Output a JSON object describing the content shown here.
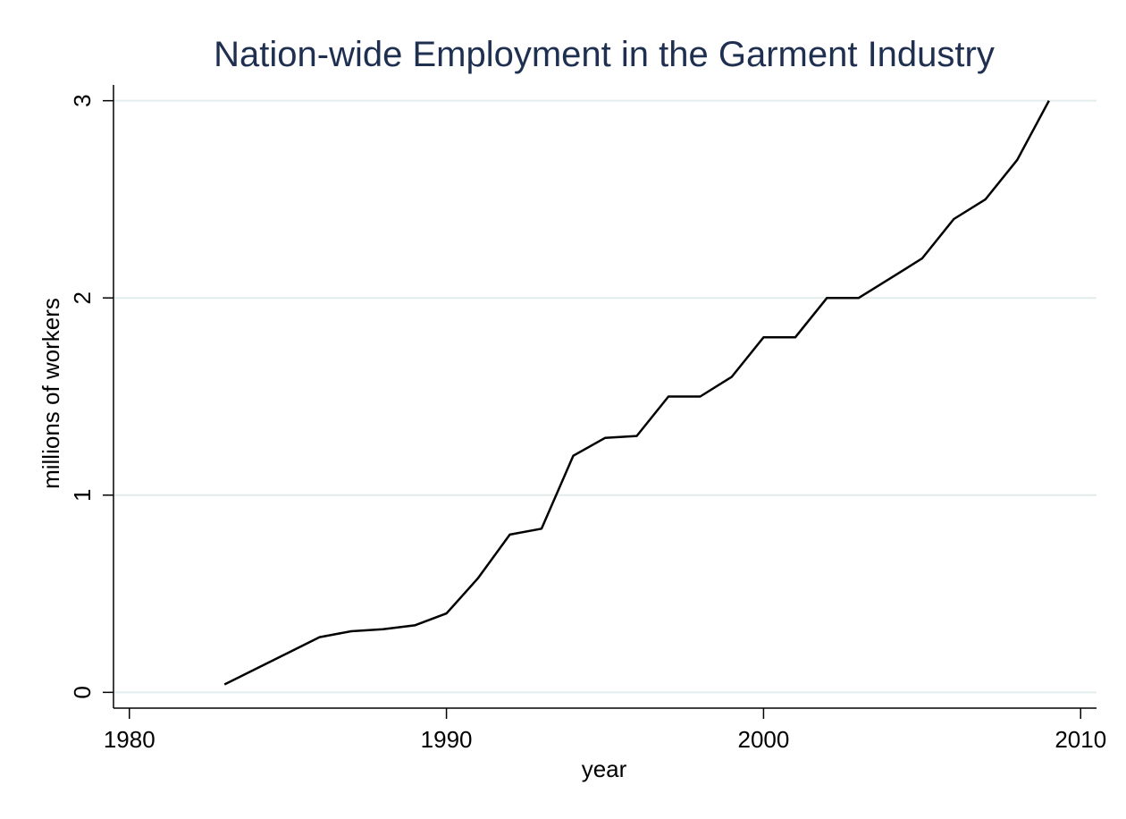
{
  "chart_data": {
    "type": "line",
    "title": "Nation-wide Employment in the Garment Industry",
    "xlabel": "year",
    "ylabel": "millions of workers",
    "xlim": [
      1979.5,
      2010.5
    ],
    "ylim": [
      -0.08,
      3.08
    ],
    "xticks": [
      1980,
      1990,
      2000,
      2010
    ],
    "yticks": [
      0,
      1,
      2,
      3
    ],
    "grid": true,
    "legend": "none",
    "line_color": "#000000",
    "title_color": "#1e2f50",
    "grid_color": "#e3ecec",
    "series": [
      {
        "x": [
          1983,
          1984,
          1985,
          1986,
          1987,
          1988,
          1989,
          1990,
          1991,
          1992,
          1993,
          1994,
          1995,
          1996,
          1997,
          1998,
          1999,
          2000,
          2001,
          2002,
          2003,
          2004,
          2005,
          2006,
          2007,
          2008,
          2009
        ],
        "y": [
          0.04,
          0.12,
          0.2,
          0.28,
          0.31,
          0.32,
          0.34,
          0.4,
          0.58,
          0.8,
          0.83,
          1.2,
          1.29,
          1.3,
          1.5,
          1.5,
          1.6,
          1.8,
          1.8,
          2.0,
          2.0,
          2.1,
          2.2,
          2.4,
          2.5,
          2.7,
          3.0
        ]
      }
    ]
  }
}
